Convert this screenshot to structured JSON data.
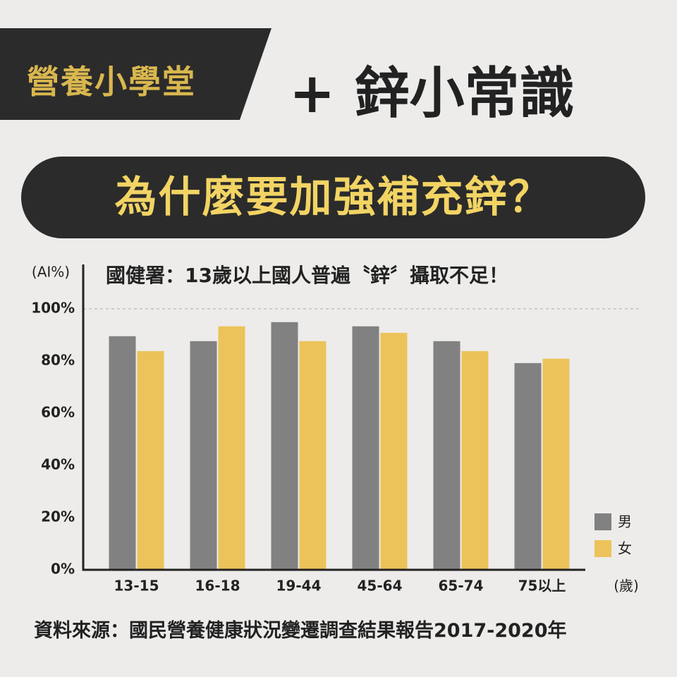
{
  "header": {
    "badge": "營養小學堂",
    "title": "+ 鋅小常識",
    "question": "為什麼要加強補充鋅？"
  },
  "chart_data": {
    "type": "bar",
    "title": "國健署：13歲以上國人普遍〝鋅〞攝取不足！",
    "y_label": "(AI%)",
    "x_label": "(歲)",
    "categories": [
      "13-15",
      "16-18",
      "19-44",
      "45-64",
      "65-74",
      "75以上"
    ],
    "series": [
      {
        "name": "男",
        "color": "#818181",
        "values": [
          89.5,
          87.6,
          94.9,
          93.3,
          87.6,
          79.2
        ]
      },
      {
        "name": "女",
        "color": "#ecc35a",
        "values": [
          83.8,
          93.3,
          87.6,
          90.8,
          83.8,
          80.9
        ]
      }
    ],
    "ylim": [
      0,
      117
    ],
    "yticks": [
      {
        "value": 0,
        "label": "0%"
      },
      {
        "value": 20,
        "label": "20%"
      },
      {
        "value": 40,
        "label": "40%"
      },
      {
        "value": 60,
        "label": "60%"
      },
      {
        "value": 80,
        "label": "80%"
      },
      {
        "value": 100,
        "label": "100%"
      }
    ],
    "reference_line": 100,
    "grid": false,
    "legend": "bottom-right"
  },
  "footer": {
    "source": "資料來源：國民營養健康狀況變遷調查結果報告2017-2020年"
  }
}
